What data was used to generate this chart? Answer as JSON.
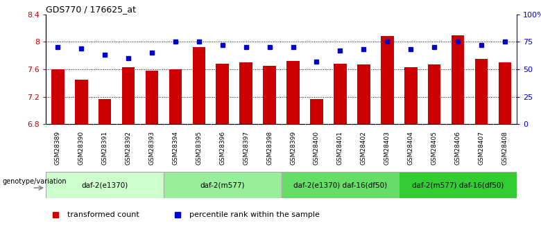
{
  "title": "GDS770 / 176625_at",
  "samples": [
    "GSM28389",
    "GSM28390",
    "GSM28391",
    "GSM28392",
    "GSM28393",
    "GSM28394",
    "GSM28395",
    "GSM28396",
    "GSM28397",
    "GSM28398",
    "GSM28399",
    "GSM28400",
    "GSM28401",
    "GSM28402",
    "GSM28403",
    "GSM28404",
    "GSM28405",
    "GSM28406",
    "GSM28407",
    "GSM28408"
  ],
  "transformed_count": [
    7.6,
    7.45,
    7.17,
    7.63,
    7.58,
    7.6,
    7.92,
    7.68,
    7.7,
    7.65,
    7.72,
    7.17,
    7.68,
    7.67,
    8.08,
    7.63,
    7.67,
    8.09,
    7.75,
    7.7
  ],
  "percentile_rank": [
    70,
    69,
    63,
    60,
    65,
    75,
    75,
    72,
    70,
    70,
    70,
    57,
    67,
    68,
    75,
    68,
    70,
    75,
    72,
    75
  ],
  "bar_color": "#cc0000",
  "dot_color": "#0000cc",
  "ylim_left": [
    6.8,
    8.4
  ],
  "ylim_right": [
    0,
    100
  ],
  "yticks_left": [
    6.8,
    7.2,
    7.6,
    8.0,
    8.4
  ],
  "ytick_labels_left": [
    "6.8",
    "7.2",
    "7.6",
    "8",
    "8.4"
  ],
  "yticks_right": [
    0,
    25,
    50,
    75,
    100
  ],
  "ytick_labels_right": [
    "0",
    "25",
    "50",
    "75",
    "100%"
  ],
  "groups": [
    {
      "label": "daf-2(e1370)",
      "start": 0,
      "end": 5,
      "color": "#ccffcc"
    },
    {
      "label": "daf-2(m577)",
      "start": 5,
      "end": 10,
      "color": "#99ee99"
    },
    {
      "label": "daf-2(e1370) daf-16(df50)",
      "start": 10,
      "end": 15,
      "color": "#66dd66"
    },
    {
      "label": "daf-2(m577) daf-16(df50)",
      "start": 15,
      "end": 20,
      "color": "#33cc33"
    }
  ],
  "genotype_label": "genotype/variation",
  "legend_items": [
    {
      "label": "transformed count",
      "color": "#cc0000"
    },
    {
      "label": "percentile rank within the sample",
      "color": "#0000cc"
    }
  ],
  "xtick_bg": "#cccccc",
  "fig_bg": "#ffffff"
}
